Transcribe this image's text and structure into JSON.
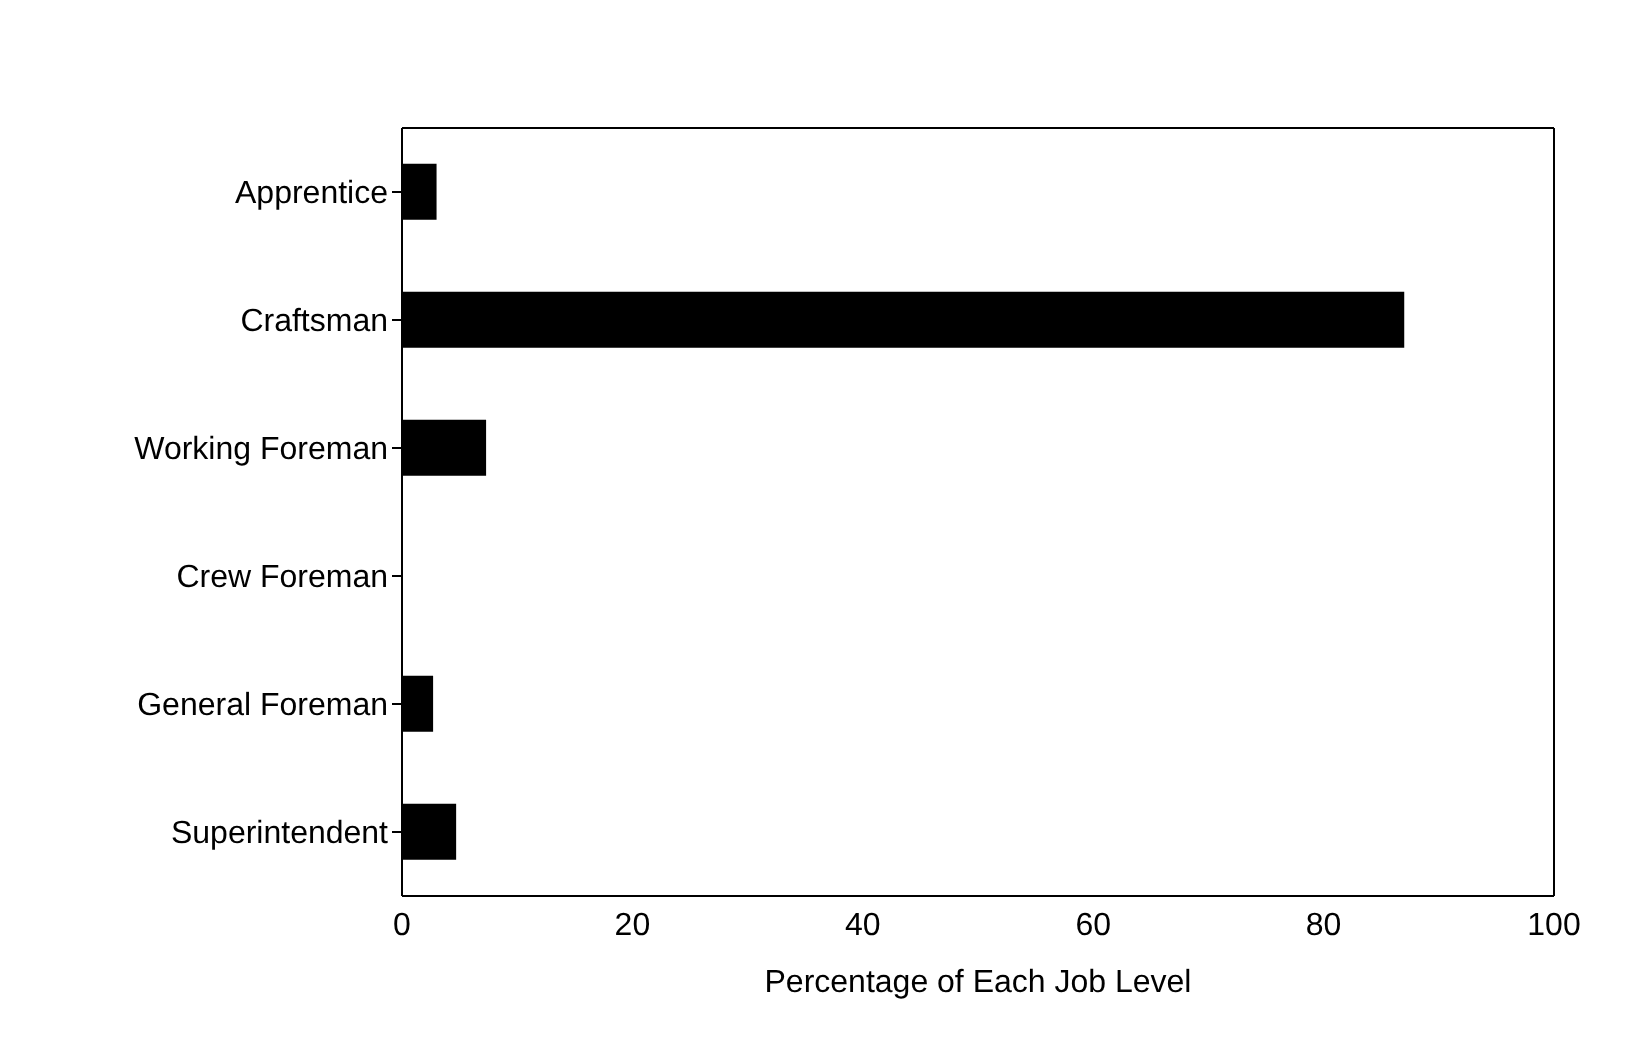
{
  "chart_data": {
    "type": "bar",
    "orientation": "horizontal",
    "xlabel": "Percentage of Each Job Level",
    "categories": [
      "Apprentice",
      "Craftsman",
      "Working Foreman",
      "Crew Foreman",
      "General Foreman",
      "Superintendent"
    ],
    "values": [
      3,
      87,
      7.3,
      0,
      2.7,
      4.7
    ],
    "color": "#000000",
    "xlim": [
      0,
      100
    ],
    "xticks": [
      0,
      20,
      40,
      60,
      80,
      100
    ]
  }
}
